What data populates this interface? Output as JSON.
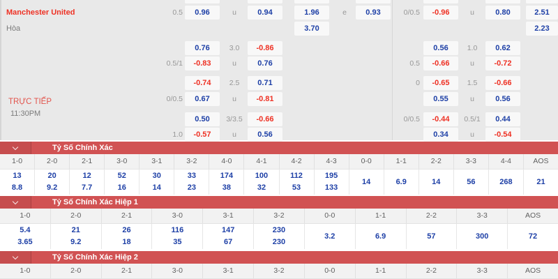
{
  "colors": {
    "bar_red": "#d15253",
    "odds_blue": "#1d3fa6",
    "odds_red": "#ee3124"
  },
  "top": {
    "home_team": "Manchester United",
    "draw_label": "Hòa",
    "live_label": "TRỰC TIẾP",
    "kickoff_time": "11:30PM",
    "rows": [
      {
        "cells": [
          {
            "col": "hdp1",
            "kind": "line",
            "text": "0.5"
          },
          {
            "col": "b1",
            "kind": "box",
            "text": "0.96",
            "color": "blue"
          },
          {
            "col": "ou1",
            "kind": "line",
            "text": "u"
          },
          {
            "col": "b2",
            "kind": "box",
            "text": "0.94",
            "color": "blue"
          },
          {
            "col": "b3",
            "kind": "box",
            "text": "1.96",
            "color": "blue"
          },
          {
            "col": "e1",
            "kind": "line",
            "text": "e"
          },
          {
            "col": "b4",
            "kind": "box",
            "text": "0.93",
            "color": "blue"
          },
          {
            "col": "hdp2",
            "kind": "line",
            "text": "0/0.5"
          },
          {
            "col": "b5",
            "kind": "box",
            "text": "-0.96",
            "color": "red"
          },
          {
            "col": "ou2",
            "kind": "line",
            "text": "u"
          },
          {
            "col": "b6",
            "kind": "box",
            "text": "0.80",
            "color": "blue"
          },
          {
            "col": "b7",
            "kind": "box",
            "text": "2.51",
            "color": "blue"
          }
        ]
      },
      {
        "cells": [
          {
            "col": "b3",
            "kind": "box",
            "text": "3.70",
            "color": "blue"
          },
          {
            "col": "b7",
            "kind": "box",
            "text": "2.23",
            "color": "blue"
          }
        ]
      },
      {
        "cells": [
          {
            "col": "b1",
            "kind": "box",
            "text": "0.76",
            "color": "blue"
          },
          {
            "col": "ou1",
            "kind": "line",
            "text": "3.0"
          },
          {
            "col": "b2",
            "kind": "box",
            "text": "-0.86",
            "color": "red"
          },
          {
            "col": "b5",
            "kind": "box",
            "text": "0.56",
            "color": "blue"
          },
          {
            "col": "ou2",
            "kind": "line",
            "text": "1.0"
          },
          {
            "col": "b6",
            "kind": "box",
            "text": "0.62",
            "color": "blue"
          }
        ]
      },
      {
        "cells": [
          {
            "col": "hdp1",
            "kind": "line",
            "text": "0.5/1"
          },
          {
            "col": "b1",
            "kind": "box",
            "text": "-0.83",
            "color": "red"
          },
          {
            "col": "ou1",
            "kind": "line",
            "text": "u"
          },
          {
            "col": "b2",
            "kind": "box",
            "text": "0.76",
            "color": "blue"
          },
          {
            "col": "hdp2",
            "kind": "line",
            "text": "0.5"
          },
          {
            "col": "b5",
            "kind": "box",
            "text": "-0.66",
            "color": "red"
          },
          {
            "col": "ou2",
            "kind": "line",
            "text": "u"
          },
          {
            "col": "b6",
            "kind": "box",
            "text": "-0.72",
            "color": "red"
          }
        ]
      },
      {
        "cells": [
          {
            "col": "b1",
            "kind": "box",
            "text": "-0.74",
            "color": "red"
          },
          {
            "col": "ou1",
            "kind": "line",
            "text": "2.5"
          },
          {
            "col": "b2",
            "kind": "box",
            "text": "0.71",
            "color": "blue"
          },
          {
            "col": "hdp2",
            "kind": "line",
            "text": "0"
          },
          {
            "col": "b5",
            "kind": "box",
            "text": "-0.65",
            "color": "red"
          },
          {
            "col": "ou2",
            "kind": "line",
            "text": "1.5"
          },
          {
            "col": "b6",
            "kind": "box",
            "text": "-0.66",
            "color": "red"
          }
        ]
      },
      {
        "cells": [
          {
            "col": "hdp1",
            "kind": "line",
            "text": "0/0.5"
          },
          {
            "col": "b1",
            "kind": "box",
            "text": "0.67",
            "color": "blue"
          },
          {
            "col": "ou1",
            "kind": "line",
            "text": "u"
          },
          {
            "col": "b2",
            "kind": "box",
            "text": "-0.81",
            "color": "red"
          },
          {
            "col": "b5",
            "kind": "box",
            "text": "0.55",
            "color": "blue"
          },
          {
            "col": "ou2",
            "kind": "line",
            "text": "u"
          },
          {
            "col": "b6",
            "kind": "box",
            "text": "0.56",
            "color": "blue"
          }
        ]
      },
      {
        "cells": [
          {
            "col": "b1",
            "kind": "box",
            "text": "0.50",
            "color": "blue"
          },
          {
            "col": "ou1",
            "kind": "line",
            "text": "3/3.5"
          },
          {
            "col": "b2",
            "kind": "box",
            "text": "-0.66",
            "color": "red"
          },
          {
            "col": "hdp2",
            "kind": "line",
            "text": "0/0.5"
          },
          {
            "col": "b5",
            "kind": "box",
            "text": "-0.44",
            "color": "red"
          },
          {
            "col": "ou2",
            "kind": "line",
            "text": "0.5/1"
          },
          {
            "col": "b6",
            "kind": "box",
            "text": "0.44",
            "color": "blue"
          }
        ]
      },
      {
        "cells": [
          {
            "col": "hdp1",
            "kind": "line",
            "text": "1.0"
          },
          {
            "col": "b1",
            "kind": "box",
            "text": "-0.57",
            "color": "red"
          },
          {
            "col": "ou1",
            "kind": "line",
            "text": "u"
          },
          {
            "col": "b2",
            "kind": "box",
            "text": "0.56",
            "color": "blue"
          },
          {
            "col": "b5",
            "kind": "box",
            "text": "0.34",
            "color": "blue"
          },
          {
            "col": "ou2",
            "kind": "line",
            "text": "u"
          },
          {
            "col": "b6",
            "kind": "box",
            "text": "-0.54",
            "color": "red"
          }
        ]
      }
    ]
  },
  "score_sections": [
    {
      "title": "Tỷ Số Chính Xác",
      "columns": [
        {
          "score": "1-0",
          "odds": [
            "13",
            "8.8"
          ]
        },
        {
          "score": "2-0",
          "odds": [
            "20",
            "9.2"
          ]
        },
        {
          "score": "2-1",
          "odds": [
            "12",
            "7.7"
          ]
        },
        {
          "score": "3-0",
          "odds": [
            "52",
            "16"
          ]
        },
        {
          "score": "3-1",
          "odds": [
            "30",
            "14"
          ]
        },
        {
          "score": "3-2",
          "odds": [
            "33",
            "23"
          ]
        },
        {
          "score": "4-0",
          "odds": [
            "174",
            "38"
          ]
        },
        {
          "score": "4-1",
          "odds": [
            "100",
            "32"
          ]
        },
        {
          "score": "4-2",
          "odds": [
            "112",
            "53"
          ]
        },
        {
          "score": "4-3",
          "odds": [
            "195",
            "133"
          ]
        },
        {
          "score": "0-0",
          "odds": [
            "14"
          ]
        },
        {
          "score": "1-1",
          "odds": [
            "6.9"
          ]
        },
        {
          "score": "2-2",
          "odds": [
            "14"
          ]
        },
        {
          "score": "3-3",
          "odds": [
            "56"
          ]
        },
        {
          "score": "4-4",
          "odds": [
            "268"
          ]
        },
        {
          "score": "AOS",
          "odds": [
            "21"
          ]
        }
      ]
    },
    {
      "title": "Tỷ Số Chính Xác Hiệp 1",
      "columns": [
        {
          "score": "1-0",
          "odds": [
            "5.4",
            "3.65"
          ]
        },
        {
          "score": "2-0",
          "odds": [
            "21",
            "9.2"
          ]
        },
        {
          "score": "2-1",
          "odds": [
            "26",
            "18"
          ]
        },
        {
          "score": "3-0",
          "odds": [
            "116",
            "35"
          ]
        },
        {
          "score": "3-1",
          "odds": [
            "147",
            "67"
          ]
        },
        {
          "score": "3-2",
          "odds": [
            "230",
            "230"
          ]
        },
        {
          "score": "0-0",
          "odds": [
            "3.2"
          ]
        },
        {
          "score": "1-1",
          "odds": [
            "6.9"
          ]
        },
        {
          "score": "2-2",
          "odds": [
            "57"
          ]
        },
        {
          "score": "3-3",
          "odds": [
            "300"
          ]
        },
        {
          "score": "AOS",
          "odds": [
            "72"
          ]
        }
      ]
    },
    {
      "title": "Tỷ Số Chính Xác Hiệp 2",
      "columns": [
        {
          "score": "1-0",
          "odds": []
        },
        {
          "score": "2-0",
          "odds": []
        },
        {
          "score": "2-1",
          "odds": []
        },
        {
          "score": "3-0",
          "odds": []
        },
        {
          "score": "3-1",
          "odds": []
        },
        {
          "score": "3-2",
          "odds": []
        },
        {
          "score": "0-0",
          "odds": []
        },
        {
          "score": "1-1",
          "odds": []
        },
        {
          "score": "2-2",
          "odds": []
        },
        {
          "score": "3-3",
          "odds": []
        },
        {
          "score": "AOS",
          "odds": []
        }
      ]
    }
  ]
}
